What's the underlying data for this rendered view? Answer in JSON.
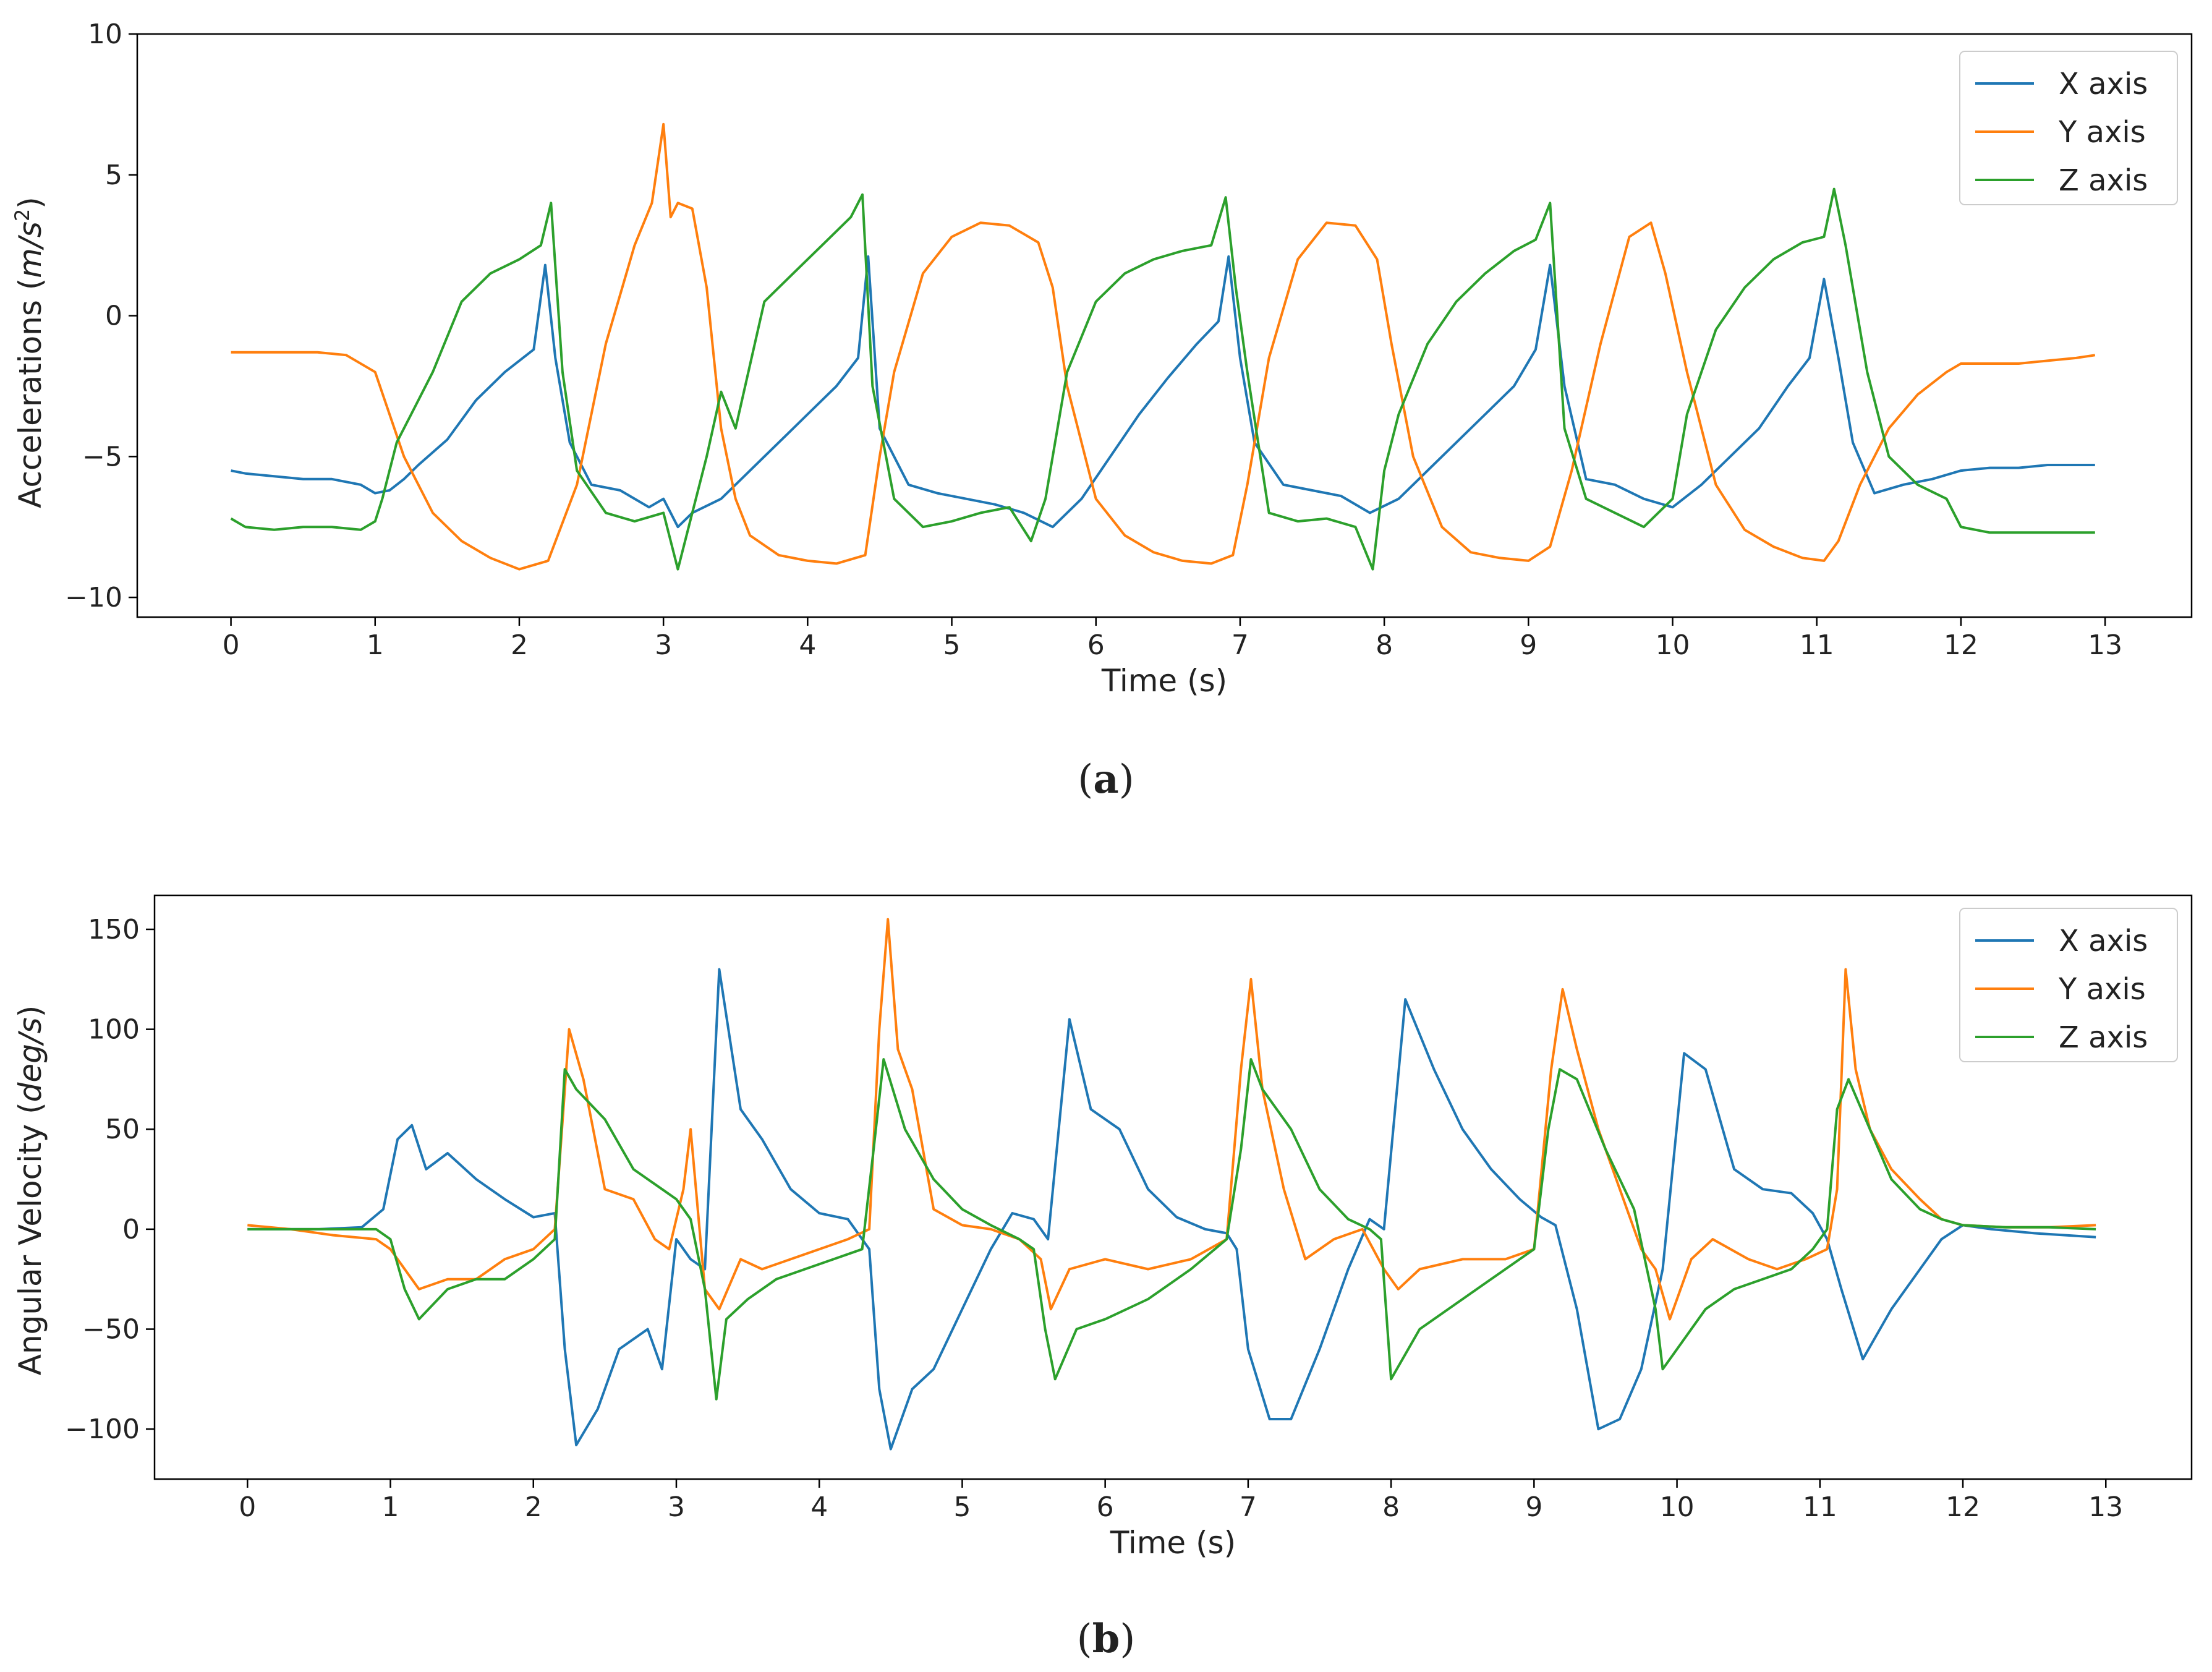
{
  "colors": {
    "x_axis": "#1f77b4",
    "y_axis": "#ff7f0e",
    "z_axis": "#2ca02c"
  },
  "chart_data": [
    {
      "id": "acceleration",
      "type": "line",
      "caption_open": "(",
      "caption_letter": "a",
      "caption_close": ")",
      "title": "",
      "xlabel": "Time (s)",
      "ylabel_prefix": "Accelerations (",
      "ylabel_unit_m": "m",
      "ylabel_unit_slash": "/",
      "ylabel_unit_s": "s",
      "ylabel_unit_exp": "2",
      "ylabel_suffix": ")",
      "xlim": [
        -0.65,
        13.6
      ],
      "ylim": [
        -10.7,
        10
      ],
      "xticks": [
        0,
        1,
        2,
        3,
        4,
        5,
        6,
        7,
        8,
        9,
        10,
        11,
        12,
        13
      ],
      "yticks": [
        -10,
        -5,
        0,
        5,
        10
      ],
      "ytick_labels": [
        "−10",
        "−5",
        "0",
        "5",
        "10"
      ],
      "legend_position": "top-right",
      "series": [
        {
          "name": "X axis",
          "color": "#1f77b4",
          "x": [
            0,
            0.1,
            0.3,
            0.5,
            0.7,
            0.9,
            1.0,
            1.1,
            1.2,
            1.3,
            1.5,
            1.7,
            1.9,
            2.1,
            2.18,
            2.25,
            2.35,
            2.5,
            2.7,
            2.9,
            3.0,
            3.1,
            3.2,
            3.4,
            3.6,
            3.8,
            4.0,
            4.2,
            4.35,
            4.42,
            4.5,
            4.7,
            4.9,
            5.1,
            5.3,
            5.5,
            5.7,
            5.9,
            6.1,
            6.3,
            6.5,
            6.7,
            6.85,
            6.92,
            7.0,
            7.1,
            7.3,
            7.5,
            7.7,
            7.9,
            8.1,
            8.3,
            8.5,
            8.7,
            8.9,
            9.05,
            9.15,
            9.25,
            9.4,
            9.6,
            9.8,
            10.0,
            10.2,
            10.4,
            10.6,
            10.8,
            10.95,
            11.05,
            11.15,
            11.25,
            11.4,
            11.6,
            11.8,
            12.0,
            12.2,
            12.4,
            12.6,
            12.8,
            12.93
          ],
          "values": [
            -5.5,
            -5.6,
            -5.7,
            -5.8,
            -5.8,
            -6.0,
            -6.3,
            -6.2,
            -5.8,
            -5.3,
            -4.4,
            -3.0,
            -2.0,
            -1.2,
            1.8,
            -1.5,
            -4.5,
            -6.0,
            -6.2,
            -6.8,
            -6.5,
            -7.5,
            -7.0,
            -6.5,
            -5.5,
            -4.5,
            -3.5,
            -2.5,
            -1.5,
            2.1,
            -4.0,
            -6.0,
            -6.3,
            -6.5,
            -6.7,
            -7.0,
            -7.5,
            -6.5,
            -5.0,
            -3.5,
            -2.2,
            -1.0,
            -0.2,
            2.1,
            -1.5,
            -4.5,
            -6.0,
            -6.2,
            -6.4,
            -7.0,
            -6.5,
            -5.5,
            -4.5,
            -3.5,
            -2.5,
            -1.2,
            1.8,
            -2.5,
            -5.8,
            -6.0,
            -6.5,
            -6.8,
            -6.0,
            -5.0,
            -4.0,
            -2.5,
            -1.5,
            1.3,
            -1.5,
            -4.5,
            -6.3,
            -6.0,
            -5.8,
            -5.5,
            -5.4,
            -5.4,
            -5.3,
            -5.3,
            -5.3
          ]
        },
        {
          "name": "Y axis",
          "color": "#ff7f0e",
          "x": [
            0,
            0.2,
            0.4,
            0.6,
            0.8,
            1.0,
            1.1,
            1.2,
            1.4,
            1.6,
            1.8,
            2.0,
            2.2,
            2.4,
            2.6,
            2.8,
            2.92,
            3.0,
            3.05,
            3.1,
            3.2,
            3.3,
            3.4,
            3.5,
            3.6,
            3.8,
            4.0,
            4.2,
            4.4,
            4.5,
            4.6,
            4.8,
            5.0,
            5.2,
            5.4,
            5.6,
            5.7,
            5.8,
            6.0,
            6.2,
            6.4,
            6.6,
            6.8,
            6.95,
            7.05,
            7.2,
            7.4,
            7.6,
            7.8,
            7.95,
            8.05,
            8.2,
            8.4,
            8.6,
            8.8,
            9.0,
            9.15,
            9.3,
            9.5,
            9.7,
            9.85,
            9.95,
            10.1,
            10.3,
            10.5,
            10.7,
            10.9,
            11.05,
            11.15,
            11.3,
            11.5,
            11.7,
            11.9,
            12.0,
            12.2,
            12.4,
            12.6,
            12.8,
            12.93
          ],
          "values": [
            -1.3,
            -1.3,
            -1.3,
            -1.3,
            -1.4,
            -2.0,
            -3.5,
            -5.0,
            -7.0,
            -8.0,
            -8.6,
            -9.0,
            -8.7,
            -6.0,
            -1.0,
            2.5,
            4.0,
            6.8,
            3.5,
            4.0,
            3.8,
            1.0,
            -4.0,
            -6.5,
            -7.8,
            -8.5,
            -8.7,
            -8.8,
            -8.5,
            -5.0,
            -2.0,
            1.5,
            2.8,
            3.3,
            3.2,
            2.6,
            1.0,
            -2.5,
            -6.5,
            -7.8,
            -8.4,
            -8.7,
            -8.8,
            -8.5,
            -6.0,
            -1.5,
            2.0,
            3.3,
            3.2,
            2.0,
            -1.0,
            -5.0,
            -7.5,
            -8.4,
            -8.6,
            -8.7,
            -8.2,
            -5.5,
            -1.0,
            2.8,
            3.3,
            1.5,
            -2.0,
            -6.0,
            -7.6,
            -8.2,
            -8.6,
            -8.7,
            -8.0,
            -6.0,
            -4.0,
            -2.8,
            -2.0,
            -1.7,
            -1.7,
            -1.7,
            -1.6,
            -1.5,
            -1.4
          ]
        },
        {
          "name": "Z axis",
          "color": "#2ca02c",
          "x": [
            0,
            0.1,
            0.3,
            0.5,
            0.7,
            0.9,
            1.0,
            1.05,
            1.15,
            1.25,
            1.4,
            1.6,
            1.8,
            2.0,
            2.15,
            2.22,
            2.3,
            2.4,
            2.6,
            2.8,
            3.0,
            3.1,
            3.2,
            3.3,
            3.4,
            3.5,
            3.7,
            3.9,
            4.1,
            4.3,
            4.38,
            4.45,
            4.6,
            4.8,
            5.0,
            5.2,
            5.4,
            5.55,
            5.65,
            5.8,
            6.0,
            6.2,
            6.4,
            6.6,
            6.8,
            6.9,
            6.97,
            7.05,
            7.2,
            7.4,
            7.6,
            7.8,
            7.92,
            8.0,
            8.1,
            8.3,
            8.5,
            8.7,
            8.9,
            9.05,
            9.15,
            9.25,
            9.4,
            9.6,
            9.8,
            10.0,
            10.1,
            10.3,
            10.5,
            10.7,
            10.9,
            11.05,
            11.12,
            11.2,
            11.35,
            11.5,
            11.7,
            11.9,
            12.0,
            12.2,
            12.4,
            12.6,
            12.8,
            12.93
          ],
          "values": [
            -7.2,
            -7.5,
            -7.6,
            -7.5,
            -7.5,
            -7.6,
            -7.3,
            -6.5,
            -4.5,
            -3.5,
            -2.0,
            0.5,
            1.5,
            2.0,
            2.5,
            4.0,
            -2.0,
            -5.5,
            -7.0,
            -7.3,
            -7.0,
            -9.0,
            -7.0,
            -5.0,
            -2.7,
            -4.0,
            0.5,
            1.5,
            2.5,
            3.5,
            4.3,
            -2.5,
            -6.5,
            -7.5,
            -7.3,
            -7.0,
            -6.8,
            -8.0,
            -6.5,
            -2.0,
            0.5,
            1.5,
            2.0,
            2.3,
            2.5,
            4.2,
            1.0,
            -2.0,
            -7.0,
            -7.3,
            -7.2,
            -7.5,
            -9.0,
            -5.5,
            -3.5,
            -1.0,
            0.5,
            1.5,
            2.3,
            2.7,
            4.0,
            -4.0,
            -6.5,
            -7.0,
            -7.5,
            -6.5,
            -3.5,
            -0.5,
            1.0,
            2.0,
            2.6,
            2.8,
            4.5,
            2.5,
            -2.0,
            -5.0,
            -6.0,
            -6.5,
            -7.5,
            -7.7,
            -7.7,
            -7.7,
            -7.7,
            -7.7
          ]
        }
      ]
    },
    {
      "id": "angular-velocity",
      "type": "line",
      "caption_open": "(",
      "caption_letter": "b",
      "caption_close": ")",
      "title": "",
      "xlabel": "Time (s)",
      "ylabel_prefix": "Angular Velocity (",
      "ylabel_unit": "deg/s",
      "ylabel_suffix": ")",
      "xlim": [
        -0.65,
        13.6
      ],
      "ylim": [
        -125,
        167
      ],
      "xticks": [
        0,
        1,
        2,
        3,
        4,
        5,
        6,
        7,
        8,
        9,
        10,
        11,
        12,
        13
      ],
      "yticks": [
        -100,
        -50,
        0,
        50,
        100,
        150
      ],
      "ytick_labels": [
        "−100",
        "−50",
        "0",
        "50",
        "100",
        "150"
      ],
      "legend_position": "top-right",
      "series": [
        {
          "name": "X axis",
          "color": "#1f77b4",
          "x": [
            0,
            0.2,
            0.5,
            0.8,
            0.95,
            1.05,
            1.15,
            1.25,
            1.4,
            1.6,
            1.8,
            2.0,
            2.15,
            2.22,
            2.3,
            2.45,
            2.6,
            2.8,
            2.9,
            3.0,
            3.1,
            3.2,
            3.3,
            3.45,
            3.6,
            3.8,
            4.0,
            4.2,
            4.35,
            4.42,
            4.5,
            4.65,
            4.8,
            5.0,
            5.2,
            5.35,
            5.5,
            5.6,
            5.75,
            5.9,
            6.1,
            6.3,
            6.5,
            6.7,
            6.85,
            6.92,
            7.0,
            7.15,
            7.3,
            7.5,
            7.7,
            7.85,
            7.95,
            8.1,
            8.3,
            8.5,
            8.7,
            8.9,
            9.05,
            9.15,
            9.3,
            9.45,
            9.6,
            9.75,
            9.9,
            10.05,
            10.2,
            10.4,
            10.6,
            10.8,
            10.95,
            11.05,
            11.15,
            11.3,
            11.5,
            11.7,
            11.85,
            12.0,
            12.2,
            12.5,
            12.93
          ],
          "values": [
            0,
            0,
            0,
            1,
            10,
            45,
            52,
            30,
            38,
            25,
            15,
            6,
            8,
            -60,
            -108,
            -90,
            -60,
            -50,
            -70,
            -5,
            -15,
            -20,
            130,
            60,
            45,
            20,
            8,
            5,
            -10,
            -80,
            -110,
            -80,
            -70,
            -40,
            -10,
            8,
            5,
            -5,
            105,
            60,
            50,
            20,
            6,
            0,
            -2,
            -10,
            -60,
            -95,
            -95,
            -60,
            -20,
            5,
            0,
            115,
            80,
            50,
            30,
            15,
            6,
            2,
            -40,
            -100,
            -95,
            -70,
            -20,
            88,
            80,
            30,
            20,
            18,
            8,
            -5,
            -30,
            -65,
            -40,
            -20,
            -5,
            2,
            0,
            -2,
            -4
          ]
        },
        {
          "name": "Y axis",
          "color": "#ff7f0e",
          "x": [
            0,
            0.3,
            0.6,
            0.9,
            1.0,
            1.2,
            1.4,
            1.6,
            1.8,
            2.0,
            2.15,
            2.25,
            2.35,
            2.5,
            2.7,
            2.85,
            2.95,
            3.05,
            3.1,
            3.2,
            3.3,
            3.45,
            3.6,
            3.8,
            4.0,
            4.2,
            4.35,
            4.42,
            4.48,
            4.55,
            4.65,
            4.8,
            5.0,
            5.2,
            5.4,
            5.55,
            5.62,
            5.75,
            6.0,
            6.3,
            6.6,
            6.85,
            6.95,
            7.02,
            7.1,
            7.25,
            7.4,
            7.6,
            7.8,
            7.95,
            8.05,
            8.2,
            8.5,
            8.8,
            9.0,
            9.12,
            9.2,
            9.3,
            9.45,
            9.6,
            9.75,
            9.85,
            9.95,
            10.1,
            10.25,
            10.5,
            10.7,
            10.9,
            11.05,
            11.12,
            11.18,
            11.25,
            11.35,
            11.5,
            11.7,
            11.85,
            12.0,
            12.3,
            12.6,
            12.93
          ],
          "values": [
            2,
            0,
            -3,
            -5,
            -10,
            -30,
            -25,
            -25,
            -15,
            -10,
            0,
            100,
            75,
            20,
            15,
            -5,
            -10,
            20,
            50,
            -30,
            -40,
            -15,
            -20,
            -15,
            -10,
            -5,
            0,
            100,
            155,
            90,
            70,
            10,
            2,
            0,
            -5,
            -15,
            -40,
            -20,
            -15,
            -20,
            -15,
            -5,
            80,
            125,
            70,
            20,
            -15,
            -5,
            0,
            -20,
            -30,
            -20,
            -15,
            -15,
            -10,
            80,
            120,
            90,
            50,
            20,
            -10,
            -20,
            -45,
            -15,
            -5,
            -15,
            -20,
            -15,
            -10,
            20,
            130,
            80,
            50,
            30,
            15,
            5,
            2,
            1,
            1,
            2
          ]
        },
        {
          "name": "Z axis",
          "color": "#2ca02c",
          "x": [
            0,
            0.3,
            0.6,
            0.9,
            1.0,
            1.1,
            1.2,
            1.4,
            1.6,
            1.8,
            2.0,
            2.15,
            2.22,
            2.3,
            2.5,
            2.7,
            2.9,
            3.0,
            3.1,
            3.2,
            3.28,
            3.35,
            3.5,
            3.7,
            3.9,
            4.1,
            4.3,
            4.38,
            4.45,
            4.6,
            4.8,
            5.0,
            5.2,
            5.4,
            5.5,
            5.58,
            5.65,
            5.8,
            6.0,
            6.3,
            6.6,
            6.85,
            6.95,
            7.02,
            7.1,
            7.3,
            7.5,
            7.7,
            7.85,
            7.93,
            8.0,
            8.2,
            8.5,
            8.8,
            9.0,
            9.1,
            9.18,
            9.3,
            9.5,
            9.7,
            9.85,
            9.9,
            10.0,
            10.2,
            10.4,
            10.6,
            10.8,
            10.95,
            11.05,
            11.12,
            11.2,
            11.35,
            11.5,
            11.7,
            11.85,
            12.0,
            12.3,
            12.6,
            12.93
          ],
          "values": [
            0,
            0,
            0,
            0,
            -5,
            -30,
            -45,
            -30,
            -25,
            -25,
            -15,
            -5,
            80,
            70,
            55,
            30,
            20,
            15,
            5,
            -30,
            -85,
            -45,
            -35,
            -25,
            -20,
            -15,
            -10,
            40,
            85,
            50,
            25,
            10,
            2,
            -5,
            -10,
            -50,
            -75,
            -50,
            -45,
            -35,
            -20,
            -5,
            40,
            85,
            70,
            50,
            20,
            5,
            0,
            -5,
            -75,
            -50,
            -35,
            -20,
            -10,
            50,
            80,
            75,
            40,
            10,
            -40,
            -70,
            -60,
            -40,
            -30,
            -25,
            -20,
            -10,
            0,
            60,
            75,
            50,
            25,
            10,
            5,
            2,
            1,
            1,
            0
          ]
        }
      ]
    }
  ]
}
